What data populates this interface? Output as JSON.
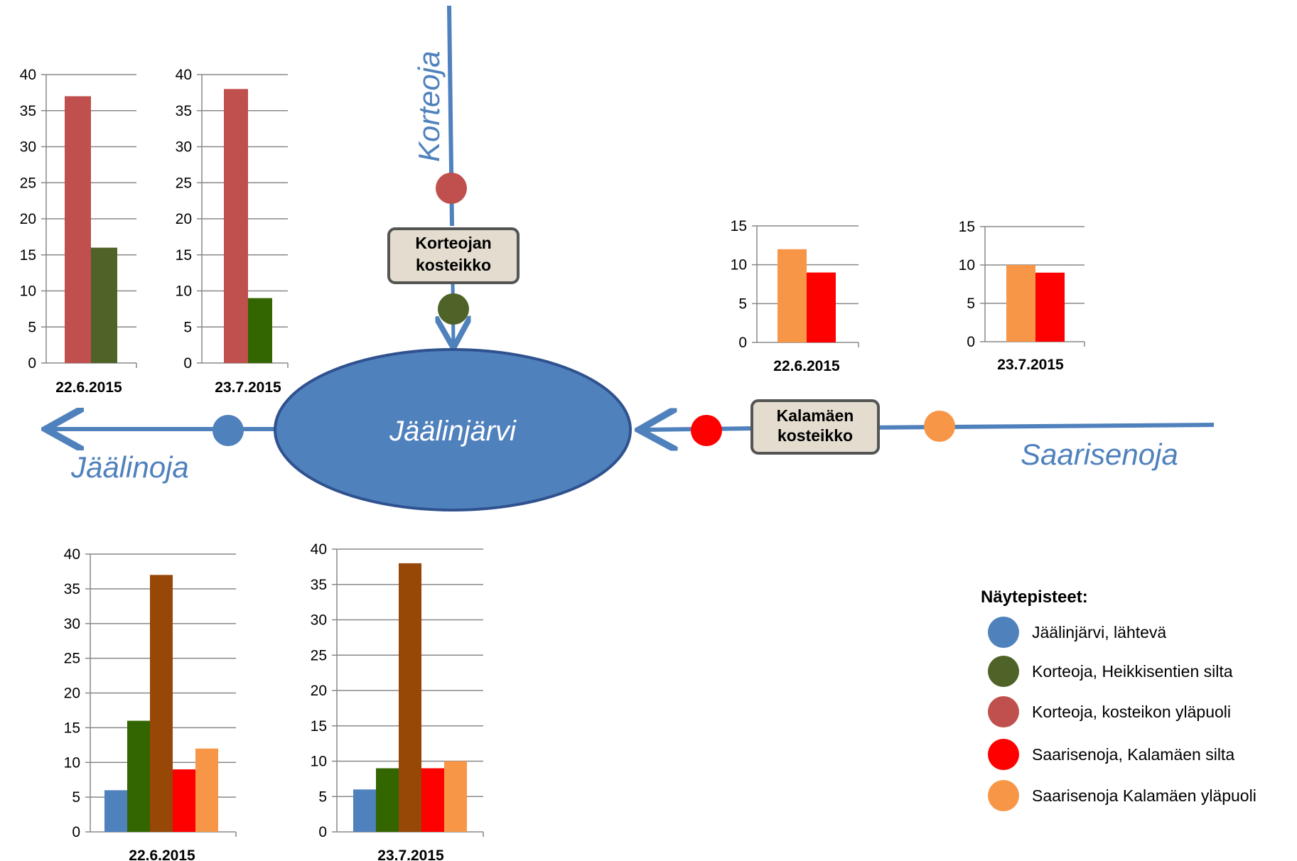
{
  "colors": {
    "river": "#4f81bd",
    "lake_fill": "#4f81bd",
    "lake_stroke": "#2f528f",
    "wetland_fill": "#e3dccf",
    "wetland_stroke": "#555555",
    "grid": "#888888"
  },
  "map": {
    "rivers": {
      "korteoja": "Korteoja",
      "jaalinoja": "Jäälinoja",
      "saarisenoja": "Saarisenoja"
    },
    "lake": "Jäälinjärvi",
    "wetlands": {
      "korteoja": [
        "Korteojan",
        "kosteikko"
      ],
      "kalamaki": [
        "Kalamäen",
        "kosteikko"
      ]
    }
  },
  "legend": {
    "title": "Näytepisteet:",
    "items": [
      {
        "label": "Jäälinjärvi, lähtevä",
        "color": "#4f81bd"
      },
      {
        "label": "Korteoja, Heikkisentien silta",
        "color": "#4f6228"
      },
      {
        "label": "Korteoja, kosteikon yläpuoli",
        "color": "#c0504d"
      },
      {
        "label": "Saarisenoja, Kalamäen silta",
        "color": "#ff0000"
      },
      {
        "label": "Saarisenoja Kalamäen yläpuoli",
        "color": "#f79646"
      }
    ]
  },
  "chart_data": [
    {
      "type": "bar",
      "id": "korte-1",
      "categories": [
        "22.6.2015"
      ],
      "ylim": [
        0,
        40
      ],
      "yticks": [
        0,
        5,
        10,
        15,
        20,
        25,
        30,
        35,
        40
      ],
      "series": [
        {
          "values": [
            37
          ],
          "color": "#c0504d"
        },
        {
          "values": [
            16
          ],
          "color": "#4f6228"
        }
      ]
    },
    {
      "type": "bar",
      "id": "korte-2",
      "categories": [
        "23.7.2015"
      ],
      "ylim": [
        0,
        40
      ],
      "yticks": [
        0,
        5,
        10,
        15,
        20,
        25,
        30,
        35,
        40
      ],
      "series": [
        {
          "values": [
            38
          ],
          "color": "#c0504d"
        },
        {
          "values": [
            9
          ],
          "color": "#336600"
        }
      ]
    },
    {
      "type": "bar",
      "id": "saari-1",
      "categories": [
        "22.6.2015"
      ],
      "ylim": [
        0,
        15
      ],
      "yticks": [
        0,
        5,
        10,
        15
      ],
      "series": [
        {
          "values": [
            12
          ],
          "color": "#f79646"
        },
        {
          "values": [
            9
          ],
          "color": "#ff0000"
        }
      ]
    },
    {
      "type": "bar",
      "id": "saari-2",
      "categories": [
        "23.7.2015"
      ],
      "ylim": [
        0,
        15
      ],
      "yticks": [
        0,
        5,
        10,
        15
      ],
      "series": [
        {
          "values": [
            10
          ],
          "color": "#f79646"
        },
        {
          "values": [
            9
          ],
          "color": "#ff0000"
        }
      ]
    },
    {
      "type": "bar",
      "id": "all-1",
      "categories": [
        "22.6.2015"
      ],
      "ylim": [
        0,
        40
      ],
      "yticks": [
        0,
        5,
        10,
        15,
        20,
        25,
        30,
        35,
        40
      ],
      "series": [
        {
          "values": [
            6
          ],
          "color": "#4f81bd"
        },
        {
          "values": [
            16
          ],
          "color": "#336600"
        },
        {
          "values": [
            37
          ],
          "color": "#974706"
        },
        {
          "values": [
            9
          ],
          "color": "#ff0000"
        },
        {
          "values": [
            12
          ],
          "color": "#f79646"
        }
      ]
    },
    {
      "type": "bar",
      "id": "all-2",
      "categories": [
        "23.7.2015"
      ],
      "ylim": [
        0,
        40
      ],
      "yticks": [
        0,
        5,
        10,
        15,
        20,
        25,
        30,
        35,
        40
      ],
      "series": [
        {
          "values": [
            6
          ],
          "color": "#4f81bd"
        },
        {
          "values": [
            9
          ],
          "color": "#336600"
        },
        {
          "values": [
            38
          ],
          "color": "#974706"
        },
        {
          "values": [
            9
          ],
          "color": "#ff0000"
        },
        {
          "values": [
            10
          ],
          "color": "#f79646"
        }
      ]
    }
  ]
}
